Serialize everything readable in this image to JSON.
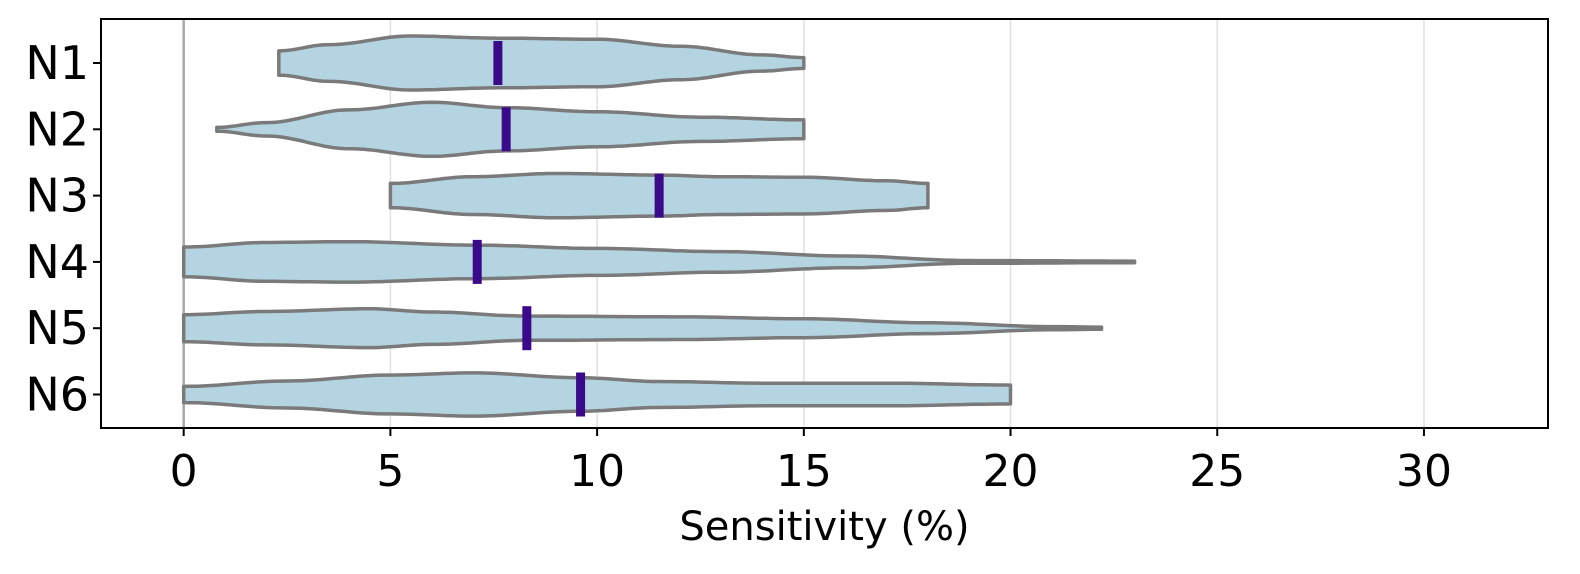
{
  "chart_data": {
    "type": "violin",
    "orientation": "horizontal",
    "title": "",
    "xlabel": "Sensitivity (%)",
    "ylabel": "",
    "xlim": [
      -2,
      33
    ],
    "xticks": [
      0,
      5,
      10,
      15,
      20,
      25,
      30
    ],
    "xtick_labels": [
      "0",
      "5",
      "10",
      "15",
      "20",
      "25",
      "30"
    ],
    "grid": "vertical",
    "colors": {
      "fill": "#b3d4e0",
      "edge": "#7a7a7a",
      "median": "#3a0a8a",
      "grid": "#e0e0e0",
      "zero_line": "#a8a8a8"
    },
    "categories": [
      "N1",
      "N2",
      "N3",
      "N4",
      "N5",
      "N6"
    ],
    "series": [
      {
        "name": "N1",
        "min": 2.3,
        "max": 15.0,
        "median": 7.6,
        "profile": [
          [
            2.3,
            0.45
          ],
          [
            3.5,
            0.68
          ],
          [
            5.5,
            1.0
          ],
          [
            7.6,
            0.92
          ],
          [
            10.0,
            0.88
          ],
          [
            12.0,
            0.62
          ],
          [
            14.0,
            0.3
          ],
          [
            15.0,
            0.2
          ]
        ]
      },
      {
        "name": "N2",
        "min": 0.8,
        "max": 15.0,
        "median": 7.8,
        "profile": [
          [
            0.8,
            0.07
          ],
          [
            2.0,
            0.25
          ],
          [
            4.0,
            0.72
          ],
          [
            6.0,
            1.0
          ],
          [
            7.8,
            0.8
          ],
          [
            10.0,
            0.65
          ],
          [
            12.5,
            0.45
          ],
          [
            15.0,
            0.35
          ]
        ]
      },
      {
        "name": "N3",
        "min": 5.0,
        "max": 18.0,
        "median": 11.5,
        "profile": [
          [
            5.0,
            0.45
          ],
          [
            7.0,
            0.7
          ],
          [
            9.0,
            0.82
          ],
          [
            11.5,
            0.76
          ],
          [
            13.0,
            0.7
          ],
          [
            15.0,
            0.68
          ],
          [
            17.0,
            0.55
          ],
          [
            18.0,
            0.45
          ]
        ]
      },
      {
        "name": "N4",
        "min": 0.0,
        "max": 23.0,
        "median": 7.1,
        "profile": [
          [
            0.0,
            0.55
          ],
          [
            2.0,
            0.72
          ],
          [
            4.0,
            0.75
          ],
          [
            7.1,
            0.62
          ],
          [
            10.0,
            0.5
          ],
          [
            13.0,
            0.38
          ],
          [
            16.0,
            0.22
          ],
          [
            19.0,
            0.05
          ],
          [
            23.0,
            0.03
          ]
        ]
      },
      {
        "name": "N5",
        "min": 0.0,
        "max": 22.2,
        "median": 8.3,
        "profile": [
          [
            0.0,
            0.5
          ],
          [
            2.0,
            0.62
          ],
          [
            4.5,
            0.72
          ],
          [
            6.0,
            0.6
          ],
          [
            8.3,
            0.45
          ],
          [
            12.0,
            0.42
          ],
          [
            15.0,
            0.35
          ],
          [
            18.0,
            0.2
          ],
          [
            21.0,
            0.06
          ],
          [
            22.2,
            0.04
          ]
        ]
      },
      {
        "name": "N6",
        "min": 0.0,
        "max": 20.0,
        "median": 9.6,
        "profile": [
          [
            0.0,
            0.3
          ],
          [
            2.5,
            0.5
          ],
          [
            5.0,
            0.72
          ],
          [
            7.0,
            0.8
          ],
          [
            9.6,
            0.62
          ],
          [
            11.5,
            0.48
          ],
          [
            14.0,
            0.42
          ],
          [
            17.0,
            0.42
          ],
          [
            20.0,
            0.35
          ]
        ]
      }
    ]
  }
}
